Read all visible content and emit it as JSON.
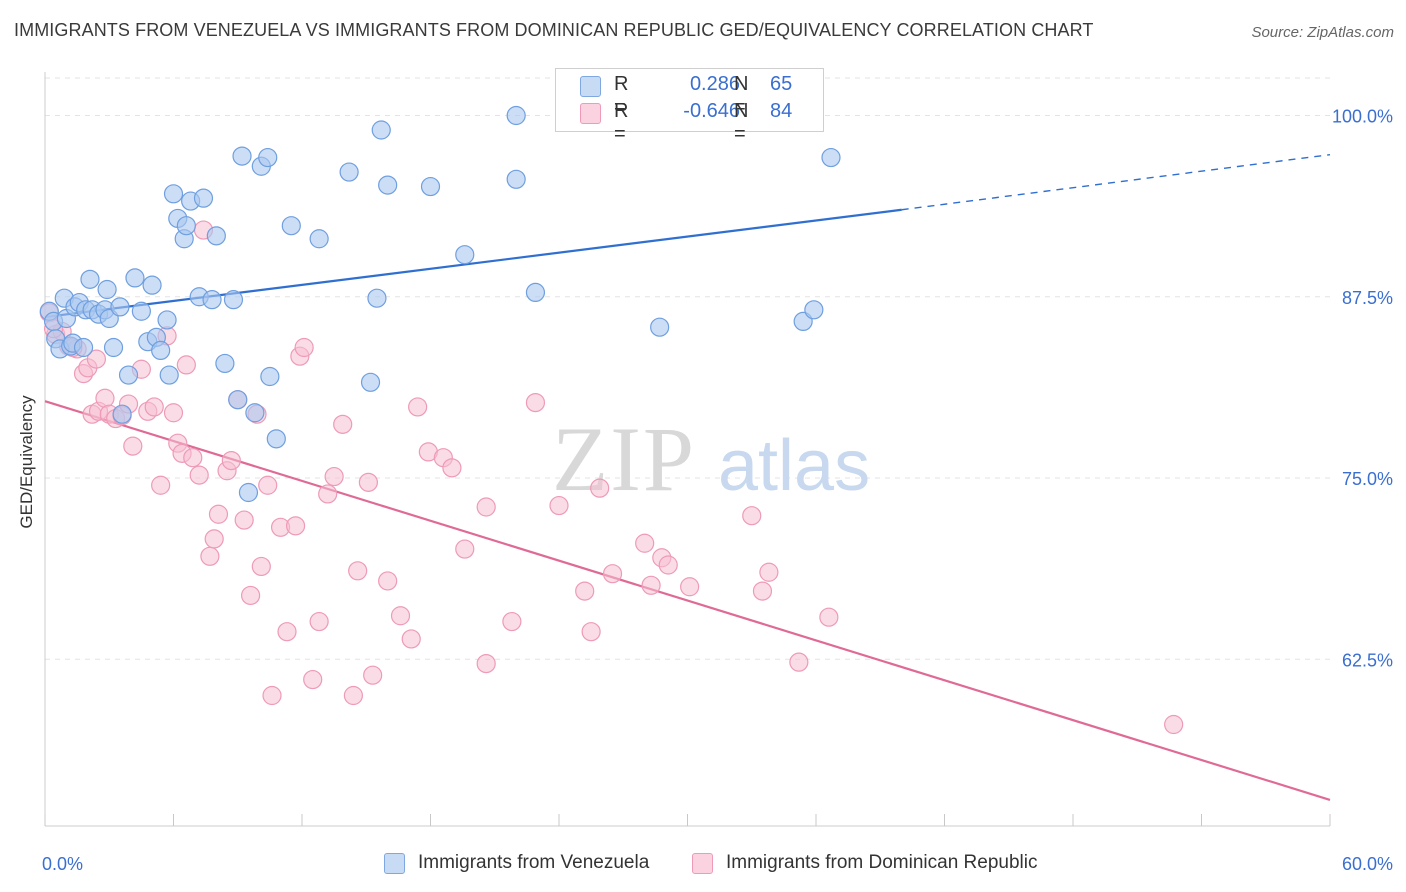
{
  "title": "IMMIGRANTS FROM VENEZUELA VS IMMIGRANTS FROM DOMINICAN REPUBLIC GED/EQUIVALENCY CORRELATION CHART",
  "source": "Source: ZipAtlas.com",
  "watermark": "ZIPatlas",
  "colors": {
    "blue_fill": "#aac8f0",
    "blue_line": "#2f6fd0",
    "pink_fill": "#f6bfd2",
    "pink_line": "#e06a96",
    "axis_text": "#3a6fd0",
    "grid": "#e3e3e3"
  },
  "legend": {
    "rows": [
      {
        "r_label": "R =",
        "r_value": "0.286",
        "n_label": "N =",
        "n_value": "65"
      },
      {
        "r_label": "R =",
        "r_value": "-0.646",
        "n_label": "N =",
        "n_value": "84"
      }
    ]
  },
  "chart_data": {
    "type": "scatter",
    "title": "IMMIGRANTS FROM VENEZUELA VS IMMIGRANTS FROM DOMINICAN REPUBLIC GED/EQUIVALENCY CORRELATION CHART",
    "xlabel": "",
    "ylabel": "GED/Equivalency",
    "xlim": [
      0,
      60
    ],
    "ylim": [
      51,
      103
    ],
    "x_tick_labels": [
      "0.0%",
      "60.0%"
    ],
    "y_ticks": [
      62.5,
      75.0,
      87.5,
      100.0
    ],
    "y_tick_labels": [
      "62.5%",
      "75.0%",
      "87.5%",
      "100.0%"
    ],
    "grid": true,
    "legend_position": "top-center",
    "series": [
      {
        "name": "Immigrants from Venezuela",
        "color": "#aac8f0",
        "trend": {
          "x0": 0,
          "y0": 86.1,
          "x1": 40,
          "y1": 93.5,
          "dashed_to_x": 60,
          "dashed_to_y": 97.3
        },
        "points": [
          [
            0.2,
            86.5
          ],
          [
            0.4,
            85.8
          ],
          [
            0.5,
            84.6
          ],
          [
            0.7,
            83.9
          ],
          [
            0.9,
            87.4
          ],
          [
            1.0,
            86.0
          ],
          [
            1.2,
            84.1
          ],
          [
            1.4,
            86.8
          ],
          [
            1.6,
            87.1
          ],
          [
            1.9,
            86.6
          ],
          [
            2.2,
            86.6
          ],
          [
            2.5,
            86.3
          ],
          [
            2.8,
            86.6
          ],
          [
            3.0,
            86.0
          ],
          [
            3.2,
            84.0
          ],
          [
            3.5,
            86.8
          ],
          [
            1.3,
            84.3
          ],
          [
            2.1,
            88.7
          ],
          [
            2.9,
            88.0
          ],
          [
            3.6,
            79.4
          ],
          [
            3.9,
            82.1
          ],
          [
            4.2,
            88.8
          ],
          [
            4.5,
            86.5
          ],
          [
            4.8,
            84.4
          ],
          [
            5.0,
            88.3
          ],
          [
            5.2,
            84.7
          ],
          [
            5.4,
            83.8
          ],
          [
            5.7,
            85.9
          ],
          [
            5.8,
            82.1
          ],
          [
            6.0,
            94.6
          ],
          [
            6.2,
            92.9
          ],
          [
            6.5,
            91.5
          ],
          [
            6.6,
            92.4
          ],
          [
            6.8,
            94.1
          ],
          [
            7.4,
            94.3
          ],
          [
            7.2,
            87.5
          ],
          [
            7.8,
            87.3
          ],
          [
            8.0,
            91.7
          ],
          [
            8.4,
            82.9
          ],
          [
            8.8,
            87.3
          ],
          [
            9.0,
            80.4
          ],
          [
            9.2,
            97.2
          ],
          [
            9.5,
            74.0
          ],
          [
            9.8,
            79.5
          ],
          [
            10.1,
            96.5
          ],
          [
            10.4,
            97.1
          ],
          [
            10.5,
            82.0
          ],
          [
            10.8,
            77.7
          ],
          [
            11.5,
            92.4
          ],
          [
            12.8,
            91.5
          ],
          [
            14.2,
            96.1
          ],
          [
            15.2,
            81.6
          ],
          [
            15.5,
            87.4
          ],
          [
            15.7,
            99.0
          ],
          [
            16.0,
            95.2
          ],
          [
            18.0,
            95.1
          ],
          [
            19.6,
            90.4
          ],
          [
            22.0,
            95.6
          ],
          [
            22.9,
            87.8
          ],
          [
            22.0,
            100.0
          ],
          [
            28.7,
            85.4
          ],
          [
            35.4,
            85.8
          ],
          [
            35.9,
            86.6
          ],
          [
            36.7,
            97.1
          ],
          [
            1.8,
            84.0
          ]
        ]
      },
      {
        "name": "Immigrants from Dominican Republic",
        "color": "#f6bfd2",
        "trend": {
          "x0": 0,
          "y0": 80.3,
          "x1": 60,
          "y1": 52.8
        },
        "points": [
          [
            0.2,
            86.4
          ],
          [
            0.5,
            84.9
          ],
          [
            0.8,
            85.1
          ],
          [
            1.1,
            84.1
          ],
          [
            1.5,
            83.9
          ],
          [
            1.8,
            82.2
          ],
          [
            2.0,
            82.6
          ],
          [
            2.2,
            79.4
          ],
          [
            2.5,
            79.6
          ],
          [
            2.8,
            80.5
          ],
          [
            3.0,
            79.4
          ],
          [
            3.3,
            79.1
          ],
          [
            3.6,
            79.3
          ],
          [
            3.9,
            80.1
          ],
          [
            4.1,
            77.2
          ],
          [
            4.5,
            82.5
          ],
          [
            4.8,
            79.6
          ],
          [
            5.1,
            79.9
          ],
          [
            5.4,
            74.5
          ],
          [
            5.7,
            84.8
          ],
          [
            6.0,
            79.5
          ],
          [
            6.2,
            77.4
          ],
          [
            6.4,
            76.7
          ],
          [
            6.6,
            82.8
          ],
          [
            6.9,
            76.4
          ],
          [
            7.2,
            75.2
          ],
          [
            7.4,
            92.1
          ],
          [
            7.7,
            69.6
          ],
          [
            7.9,
            70.8
          ],
          [
            8.1,
            72.5
          ],
          [
            8.5,
            75.5
          ],
          [
            8.7,
            76.2
          ],
          [
            9.0,
            80.4
          ],
          [
            9.3,
            72.1
          ],
          [
            9.6,
            66.9
          ],
          [
            9.9,
            79.4
          ],
          [
            10.1,
            68.9
          ],
          [
            10.4,
            74.5
          ],
          [
            10.6,
            60.0
          ],
          [
            11.0,
            71.6
          ],
          [
            11.3,
            64.4
          ],
          [
            11.7,
            71.7
          ],
          [
            11.9,
            83.4
          ],
          [
            12.1,
            84.0
          ],
          [
            12.5,
            61.1
          ],
          [
            12.8,
            65.1
          ],
          [
            13.2,
            73.9
          ],
          [
            13.5,
            75.1
          ],
          [
            13.9,
            78.7
          ],
          [
            14.4,
            60.0
          ],
          [
            14.6,
            68.6
          ],
          [
            15.1,
            74.7
          ],
          [
            15.3,
            61.4
          ],
          [
            16.0,
            67.9
          ],
          [
            16.6,
            65.5
          ],
          [
            17.1,
            63.9
          ],
          [
            17.4,
            79.9
          ],
          [
            17.9,
            76.8
          ],
          [
            18.6,
            76.4
          ],
          [
            19.0,
            75.7
          ],
          [
            19.6,
            70.1
          ],
          [
            20.6,
            62.2
          ],
          [
            20.6,
            73.0
          ],
          [
            21.8,
            65.1
          ],
          [
            22.9,
            80.2
          ],
          [
            24.0,
            73.1
          ],
          [
            25.2,
            67.2
          ],
          [
            25.5,
            64.4
          ],
          [
            25.9,
            74.3
          ],
          [
            26.5,
            68.4
          ],
          [
            28.0,
            70.5
          ],
          [
            28.3,
            67.6
          ],
          [
            28.8,
            69.5
          ],
          [
            29.1,
            69.0
          ],
          [
            30.1,
            67.5
          ],
          [
            33.0,
            72.4
          ],
          [
            33.5,
            67.2
          ],
          [
            33.8,
            68.5
          ],
          [
            35.2,
            62.3
          ],
          [
            36.6,
            65.4
          ],
          [
            52.7,
            58.0
          ],
          [
            0.4,
            85.3
          ],
          [
            1.3,
            84.0
          ],
          [
            2.4,
            83.2
          ]
        ]
      }
    ]
  },
  "bottom_legend": {
    "items": [
      {
        "label": "Immigrants from Venezuela"
      },
      {
        "label": "Immigrants from Dominican Republic"
      }
    ]
  }
}
